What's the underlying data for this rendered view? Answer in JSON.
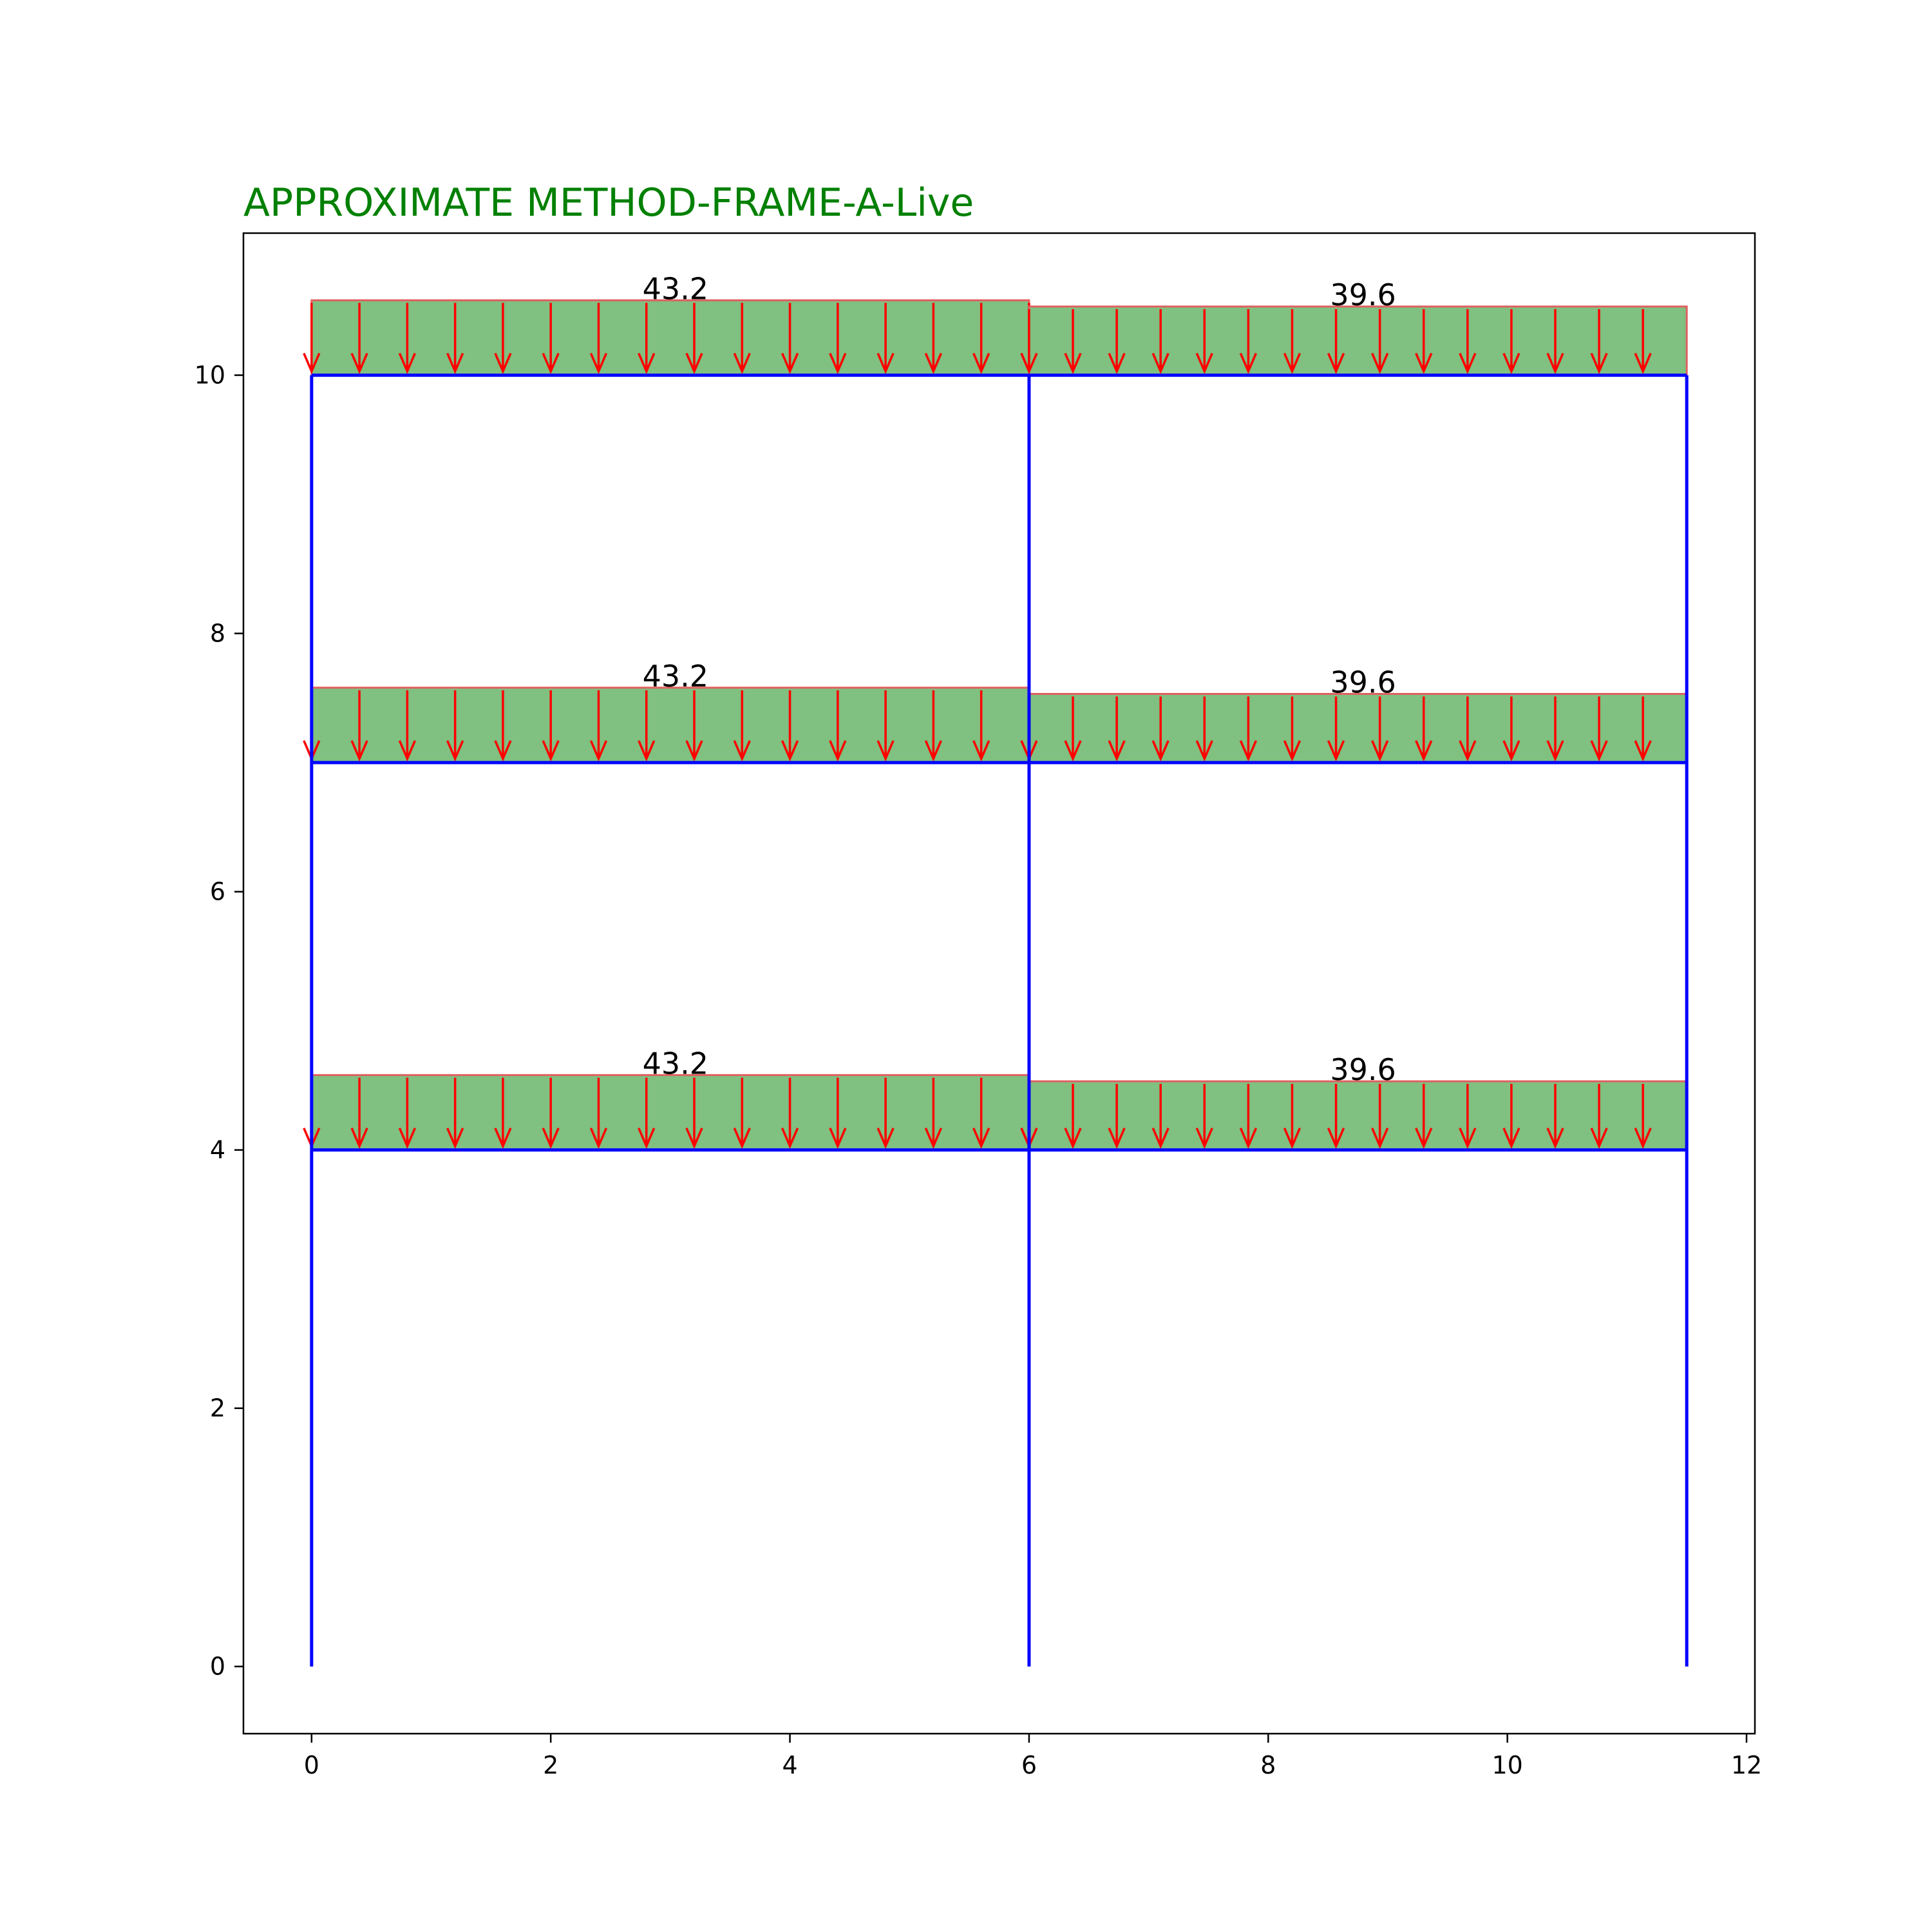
{
  "title": "APPROXIMATE METHOD-FRAME-A-Live",
  "colors": {
    "title": "#008000",
    "frame": "#0000ff",
    "load_fill": "#80c080",
    "load_edge": "#e06060",
    "arrow": "#ff0000",
    "axes": "#000000"
  },
  "chart_data": {
    "type": "diagram",
    "xlim": [
      -0.57,
      12.07
    ],
    "ylim": [
      -0.52,
      11.1
    ],
    "x_ticks": [
      0,
      2,
      4,
      6,
      8,
      10,
      12
    ],
    "y_ticks": [
      0,
      2,
      4,
      6,
      8,
      10
    ],
    "columns": [
      {
        "x": 0,
        "y0": 0,
        "y1": 10
      },
      {
        "x": 6,
        "y0": 0,
        "y1": 10
      },
      {
        "x": 11.5,
        "y0": 0,
        "y1": 10
      }
    ],
    "beams": [
      {
        "x0": 0,
        "x1": 11.5,
        "y": 4
      },
      {
        "x0": 0,
        "x1": 11.5,
        "y": 7
      },
      {
        "x0": 0,
        "x1": 11.5,
        "y": 10
      }
    ],
    "loads": [
      {
        "x0": 0,
        "x1": 6,
        "level": 4,
        "value": "43.2",
        "magnitude": 43.2
      },
      {
        "x0": 6,
        "x1": 11.5,
        "level": 4,
        "value": "39.6",
        "magnitude": 39.6
      },
      {
        "x0": 0,
        "x1": 6,
        "level": 7,
        "value": "43.2",
        "magnitude": 43.2
      },
      {
        "x0": 6,
        "x1": 11.5,
        "level": 7,
        "value": "39.6",
        "magnitude": 39.6
      },
      {
        "x0": 0,
        "x1": 6,
        "level": 10,
        "value": "43.2",
        "magnitude": 43.2
      },
      {
        "x0": 6,
        "x1": 11.5,
        "level": 10,
        "value": "39.6",
        "magnitude": 39.6
      }
    ],
    "arrow_spacing": {
      "left_bay": 0.4,
      "right_bay": 0.3667
    }
  }
}
